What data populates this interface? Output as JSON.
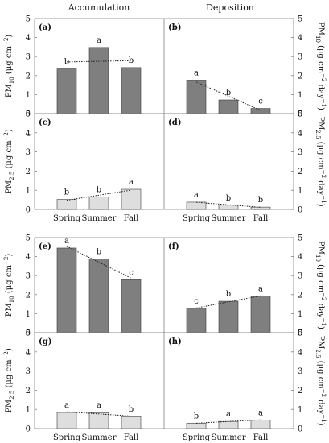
{
  "headers": {
    "left": "Accumulation",
    "right": "Deposition"
  },
  "y_labels": {
    "pm10_left": [
      "PM",
      "10",
      " (μg cm",
      "−2",
      ")"
    ],
    "pm25_left": [
      "PM",
      "2.5",
      " (μg cm",
      "−2",
      ")"
    ],
    "pm10_right": [
      "PM",
      "10",
      " (μg cm",
      "−2",
      " day",
      "−1",
      ")"
    ],
    "pm25_right": [
      "PM",
      "2.5",
      " (μg cm",
      "−2",
      " day",
      "−1",
      ")"
    ]
  },
  "y_ticks": [
    "0",
    "1",
    "2",
    "3",
    "4",
    "5"
  ],
  "colors": {
    "pm10_bar": "#7f7f7f",
    "pm25_bar": "#dedede",
    "axis": "#808080",
    "text": "#111111"
  },
  "chart_data": [
    {
      "panel": "(a)",
      "type": "bar",
      "categories": [
        "Spring",
        "Summer",
        "Fall"
      ],
      "values": [
        2.35,
        3.48,
        2.42
      ],
      "letters": [
        "b",
        "a",
        "b"
      ],
      "ylim": [
        0,
        5
      ],
      "trendline": true,
      "ylabel": "PM10 (μg cm−2)",
      "pollutant": "PM10"
    },
    {
      "panel": "(b)",
      "type": "bar",
      "categories": [
        "Spring",
        "Summer",
        "Fall"
      ],
      "values": [
        1.76,
        0.72,
        0.27
      ],
      "letters": [
        "a",
        "b",
        "c"
      ],
      "ylim": [
        0,
        5
      ],
      "trendline": true,
      "ylabel": "PM10 (μg cm−2 day−1)",
      "pollutant": "PM10"
    },
    {
      "panel": "(c)",
      "type": "bar",
      "categories": [
        "Spring",
        "Summer",
        "Fall"
      ],
      "values": [
        0.52,
        0.66,
        1.05
      ],
      "letters": [
        "b",
        "b",
        "a"
      ],
      "ylim": [
        0,
        5
      ],
      "trendline": true,
      "ylabel": "PM2.5 (μg cm−2)",
      "pollutant": "PM2.5"
    },
    {
      "panel": "(d)",
      "type": "bar",
      "categories": [
        "Spring",
        "Summer",
        "Fall"
      ],
      "values": [
        0.38,
        0.22,
        0.12
      ],
      "letters": [
        "a",
        "b",
        "b"
      ],
      "ylim": [
        0,
        5
      ],
      "trendline": true,
      "ylabel": "PM2.5 (μg cm−2 day−1)",
      "pollutant": "PM2.5"
    },
    {
      "panel": "(e)",
      "type": "bar",
      "categories": [
        "Spring",
        "Summer",
        "Fall"
      ],
      "values": [
        4.45,
        3.88,
        2.78
      ],
      "letters": [
        "a",
        "b",
        "c"
      ],
      "ylim": [
        0,
        5
      ],
      "trendline": true,
      "ylabel": "PM10 (μg cm−2)",
      "pollutant": "PM10"
    },
    {
      "panel": "(f)",
      "type": "bar",
      "categories": [
        "Spring",
        "Summer",
        "Fall"
      ],
      "values": [
        1.28,
        1.65,
        1.92
      ],
      "letters": [
        "c",
        "b",
        "a"
      ],
      "ylim": [
        0,
        5
      ],
      "trendline": true,
      "ylabel": "PM10 (μg cm−2 day−1)",
      "pollutant": "PM10"
    },
    {
      "panel": "(g)",
      "type": "bar",
      "categories": [
        "Spring",
        "Summer",
        "Fall"
      ],
      "values": [
        0.84,
        0.83,
        0.62
      ],
      "letters": [
        "a",
        "a",
        "b"
      ],
      "ylim": [
        0,
        5
      ],
      "trendline": true,
      "ylabel": "PM2.5 (μg cm−2)",
      "pollutant": "PM2.5"
    },
    {
      "panel": "(h)",
      "type": "bar",
      "categories": [
        "Spring",
        "Summer",
        "Fall"
      ],
      "values": [
        0.28,
        0.37,
        0.45
      ],
      "letters": [
        "b",
        "a",
        "a"
      ],
      "ylim": [
        0,
        5
      ],
      "trendline": true,
      "ylabel": "PM2.5 (μg cm−2 day−1)",
      "pollutant": "PM2.5"
    }
  ]
}
